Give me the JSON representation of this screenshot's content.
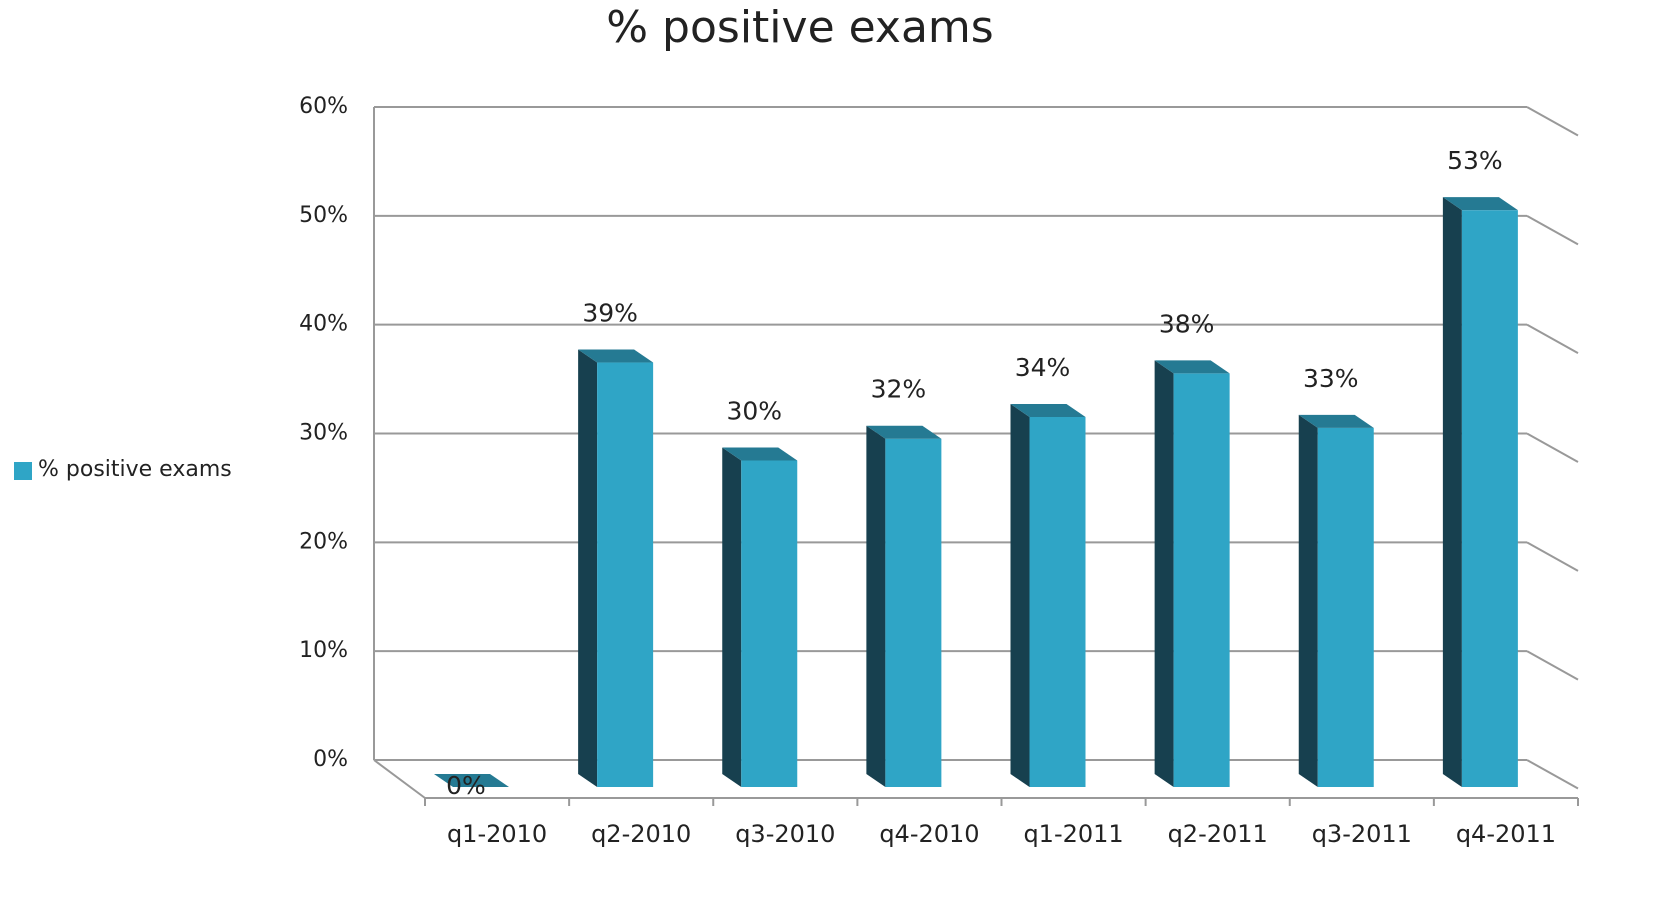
{
  "chart_data": {
    "type": "bar3d",
    "title": "% positive exams",
    "categories": [
      "q1-2010",
      "q2-2010",
      "q3-2010",
      "q4-2010",
      "q1-2011",
      "q2-2011",
      "q3-2011",
      "q4-2011"
    ],
    "series": [
      {
        "name": "% positive exams",
        "color": "#2fa5c6",
        "values": [
          0,
          39,
          30,
          32,
          34,
          38,
          33,
          53
        ],
        "value_labels": [
          "0%",
          "39%",
          "30%",
          "32%",
          "34%",
          "38%",
          "33%",
          "53%"
        ]
      }
    ],
    "ylim": [
      0,
      60
    ],
    "yticks": [
      {
        "value": 0,
        "label": "0%"
      },
      {
        "value": 10,
        "label": "10%"
      },
      {
        "value": 20,
        "label": "20%"
      },
      {
        "value": 30,
        "label": "30%"
      },
      {
        "value": 40,
        "label": "40%"
      },
      {
        "value": 50,
        "label": "50%"
      },
      {
        "value": 60,
        "label": "60%"
      }
    ],
    "grid": true,
    "legend": "left"
  }
}
